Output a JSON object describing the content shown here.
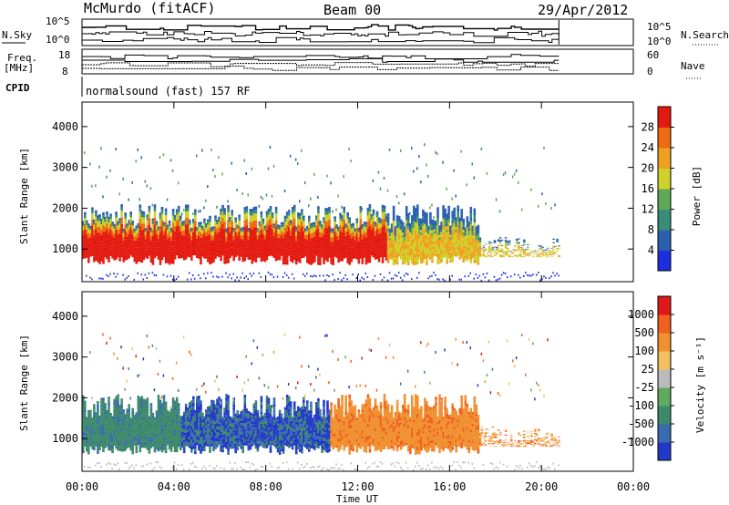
{
  "header": {
    "station": "McMurdo (fitACF)",
    "beam": "Beam 00",
    "date": "29/Apr/2012"
  },
  "top_panels": {
    "nsky_label": "N.Sky",
    "nsearch_label": "N.Search",
    "noise_ticks_left": [
      "10^5",
      "10^0"
    ],
    "noise_ticks_right": [
      "10^5",
      "10^0"
    ],
    "freq_label_line1": "Freq.",
    "freq_label_line2": "[MHz]",
    "freq_ticks": [
      "18",
      "8"
    ],
    "nave_label": "Nave",
    "nave_ticks": [
      "60",
      "0"
    ],
    "cpid_label": "CPID",
    "cpid_text": "normalsound (fast) 157 RF"
  },
  "chart_data": [
    {
      "type": "heatmap",
      "name": "power-panel",
      "ylabel": "Slant Range [km]",
      "xlabel": "Time UT",
      "xlim": [
        0,
        24
      ],
      "ylim": [
        200,
        4600
      ],
      "yticks": [
        "1000",
        "2000",
        "3000",
        "4000"
      ],
      "xticks": [
        "00:00",
        "04:00",
        "08:00",
        "12:00",
        "16:00",
        "20:00",
        "00:00"
      ],
      "colorbar": {
        "label": "Power [dB]",
        "ticks": [
          "4",
          "8",
          "12",
          "16",
          "20",
          "24",
          "28"
        ],
        "colors": [
          "#1c2fe0",
          "#2b5fb0",
          "#3a8c78",
          "#5fa85a",
          "#cfd02a",
          "#f0a020",
          "#f06a10",
          "#e41a10"
        ]
      }
    },
    {
      "type": "heatmap",
      "name": "velocity-panel",
      "ylabel": "Slant Range [km]",
      "xlabel": "Time UT",
      "xlim": [
        0,
        24
      ],
      "ylim": [
        200,
        4600
      ],
      "yticks": [
        "1000",
        "2000",
        "3000",
        "4000"
      ],
      "xticks": [
        "00:00",
        "04:00",
        "08:00",
        "12:00",
        "16:00",
        "20:00",
        "00:00"
      ],
      "colorbar": {
        "label": "Velocity [m s⁻¹]",
        "ticks": [
          "1000",
          "500",
          "100",
          "25",
          "-25",
          "-100",
          "-500",
          "-1000"
        ],
        "colors": [
          "#2238c8",
          "#3a6ab0",
          "#3d8a6a",
          "#5faa5f",
          "#bbbbbb",
          "#f0c060",
          "#f09030",
          "#f06020",
          "#e01818"
        ]
      }
    }
  ],
  "xaxis_title": "Time UT"
}
